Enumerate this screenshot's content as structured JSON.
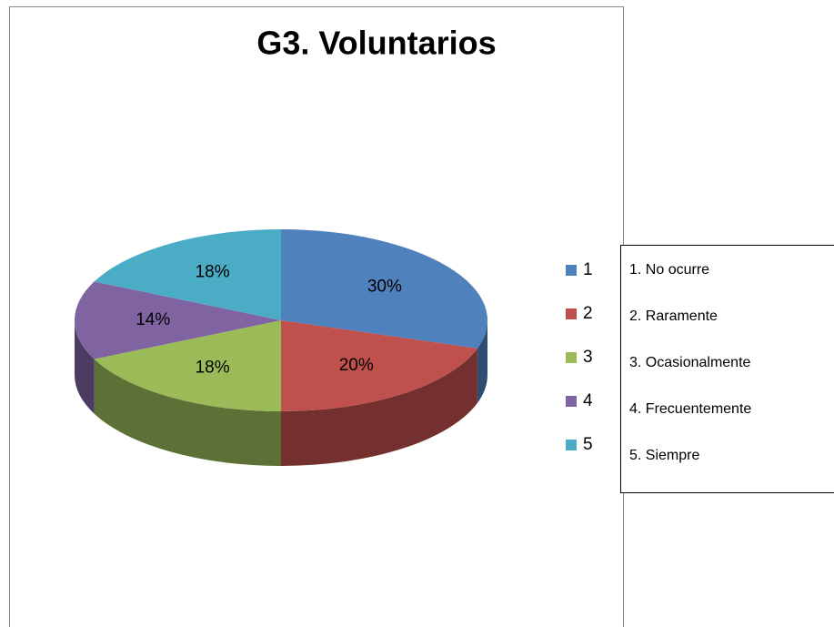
{
  "chart_data": {
    "type": "pie",
    "title": "G3. Voluntarios",
    "categories": [
      "1",
      "2",
      "3",
      "4",
      "5"
    ],
    "values": [
      30,
      20,
      18,
      14,
      18
    ],
    "value_labels": [
      "30%",
      "20%",
      "18%",
      "14%",
      "18%"
    ],
    "colors": [
      "#4f81bd",
      "#c0504d",
      "#9bbb59",
      "#8064a2",
      "#4bacc6"
    ],
    "legend": "right",
    "key_box": [
      "1. No ocurre",
      "2. Raramente",
      "3. Ocasionalmente",
      "4. Frecuentemente",
      "5. Siempre"
    ]
  }
}
